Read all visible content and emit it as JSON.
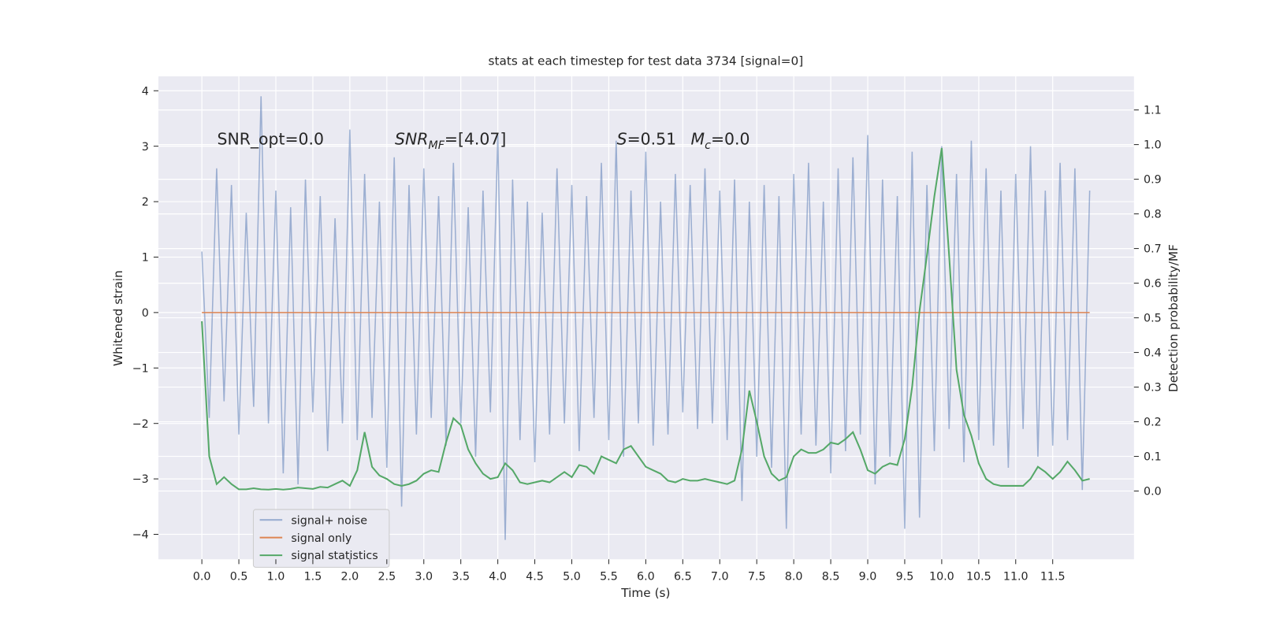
{
  "chart_data": {
    "type": "line",
    "title": "stats at each timestep for test data 3734 [signal=0]",
    "x_label": "Time (s)",
    "y_label": "Whitened strain",
    "y2_label": "Detection probability/MF",
    "annotations": [
      [
        "SNR_opt=0.0"
      ],
      [
        "SNR",
        "MF",
        "=[4.07]"
      ],
      [
        "S",
        "=0.51",
        "M",
        "c",
        "=0.0"
      ]
    ],
    "grid": true,
    "legend": "lower left",
    "xlim": [
      -0.587,
      12.598
    ],
    "ylim": [
      -4.45,
      4.26
    ],
    "y2lim": [
      -0.197,
      1.197
    ],
    "xticks": [
      {
        "value": 0,
        "label": "0.0"
      },
      {
        "value": 0.5,
        "label": "0.5"
      },
      {
        "value": 1,
        "label": "1.0"
      },
      {
        "value": 1.5,
        "label": "1.5"
      },
      {
        "value": 2,
        "label": "2.0"
      },
      {
        "value": 2.5,
        "label": "2.5"
      },
      {
        "value": 3,
        "label": "3.0"
      },
      {
        "value": 3.5,
        "label": "3.5"
      },
      {
        "value": 4,
        "label": "4.0"
      },
      {
        "value": 4.5,
        "label": "4.5"
      },
      {
        "value": 5,
        "label": "5.0"
      },
      {
        "value": 5.5,
        "label": "5.5"
      },
      {
        "value": 6,
        "label": "6.0"
      },
      {
        "value": 6.5,
        "label": "6.5"
      },
      {
        "value": 7,
        "label": "7.0"
      },
      {
        "value": 7.5,
        "label": "7.5"
      },
      {
        "value": 8,
        "label": "8.0"
      },
      {
        "value": 8.5,
        "label": "8.5"
      },
      {
        "value": 9,
        "label": "9.0"
      },
      {
        "value": 9.5,
        "label": "9.5"
      },
      {
        "value": 10,
        "label": "10.0"
      },
      {
        "value": 10.5,
        "label": "10.5"
      },
      {
        "value": 11,
        "label": "11.0"
      },
      {
        "value": 11.5,
        "label": "11.5"
      }
    ],
    "yticks": [
      {
        "value": -4,
        "label": "−4"
      },
      {
        "value": -3,
        "label": "−3"
      },
      {
        "value": -2,
        "label": "−2"
      },
      {
        "value": -1,
        "label": "−1"
      },
      0,
      1,
      2,
      3,
      4
    ],
    "y2ticks": [
      {
        "value": 0,
        "label": "0.0"
      },
      {
        "value": 0.1,
        "label": "0.1"
      },
      {
        "value": 0.2,
        "label": "0.2"
      },
      {
        "value": 0.3,
        "label": "0.3"
      },
      {
        "value": 0.4,
        "label": "0.4"
      },
      {
        "value": 0.5,
        "label": "0.5"
      },
      {
        "value": 0.6,
        "label": "0.6"
      },
      {
        "value": 0.7,
        "label": "0.7"
      },
      {
        "value": 0.8,
        "label": "0.8"
      },
      {
        "value": 0.9,
        "label": "0.9"
      },
      {
        "value": 1,
        "label": "1.0"
      },
      {
        "value": 1.1,
        "label": "1.1"
      }
    ],
    "x": [
      0,
      0.1,
      0.2,
      0.3,
      0.4,
      0.5,
      0.6,
      0.7,
      0.8,
      0.9,
      1,
      1.1,
      1.2,
      1.3,
      1.4,
      1.5,
      1.6,
      1.7,
      1.8,
      1.9,
      2,
      2.1,
      2.2,
      2.3,
      2.4,
      2.5,
      2.6,
      2.7,
      2.8,
      2.9,
      3,
      3.1,
      3.2,
      3.3,
      3.4,
      3.5,
      3.6,
      3.7,
      3.8,
      3.9,
      4,
      4.1,
      4.2,
      4.3,
      4.4,
      4.5,
      4.6,
      4.7,
      4.8,
      4.9,
      5,
      5.1,
      5.2,
      5.3,
      5.4,
      5.5,
      5.6,
      5.7,
      5.8,
      5.9,
      6,
      6.1,
      6.2,
      6.3,
      6.4,
      6.5,
      6.6,
      6.7,
      6.8,
      6.9,
      7,
      7.1,
      7.2,
      7.3,
      7.4,
      7.5,
      7.6,
      7.7,
      7.8,
      7.9,
      8,
      8.1,
      8.2,
      8.3,
      8.4,
      8.5,
      8.6,
      8.7,
      8.8,
      8.9,
      9,
      9.1,
      9.2,
      9.3,
      9.4,
      9.5,
      9.6,
      9.7,
      9.8,
      9.9,
      10,
      10.1,
      10.2,
      10.3,
      10.4,
      10.5,
      10.6,
      10.7,
      10.8,
      10.9,
      11,
      11.1,
      11.2,
      11.3,
      11.4,
      11.5,
      11.6,
      11.7,
      11.8,
      11.9,
      12
    ],
    "series": [
      {
        "name": "signal+ noise",
        "color": "#4c72b0",
        "opacity": 0.5,
        "values": [
          1.1,
          -1.9,
          2.6,
          -1.6,
          2.3,
          -2.2,
          1.8,
          -1.7,
          3.9,
          -2.0,
          2.2,
          -2.9,
          1.9,
          -3.1,
          2.4,
          -1.8,
          2.1,
          -2.5,
          1.7,
          -2.0,
          3.3,
          -2.3,
          2.5,
          -1.9,
          2.0,
          -2.8,
          2.8,
          -3.5,
          2.3,
          -2.2,
          2.6,
          -1.9,
          2.1,
          -2.4,
          2.7,
          -2.0,
          1.9,
          -2.6,
          2.2,
          -1.8,
          3.2,
          -4.1,
          2.4,
          -2.3,
          2.0,
          -2.7,
          1.8,
          -2.2,
          2.6,
          -2.0,
          2.3,
          -2.5,
          2.1,
          -1.9,
          2.7,
          -2.3,
          3.1,
          -2.6,
          2.2,
          -2.0,
          2.9,
          -2.4,
          2.0,
          -2.2,
          2.5,
          -1.8,
          2.3,
          -2.1,
          2.6,
          -2.0,
          2.2,
          -2.3,
          2.4,
          -3.4,
          2.0,
          -2.6,
          2.3,
          -2.8,
          2.1,
          -3.9,
          2.5,
          -2.2,
          2.7,
          -2.4,
          2.0,
          -2.9,
          2.6,
          -2.5,
          2.8,
          -2.2,
          3.2,
          -3.1,
          2.4,
          -2.6,
          2.1,
          -3.9,
          2.9,
          -3.7,
          2.3,
          -2.5,
          3.0,
          -2.1,
          2.5,
          -2.7,
          3.1,
          -2.3,
          2.6,
          -2.4,
          2.2,
          -2.8,
          2.5,
          -2.1,
          3.0,
          -2.6,
          2.2,
          -2.4,
          2.7,
          -2.3,
          2.6,
          -3.2,
          2.2
        ]
      },
      {
        "name": "signal only",
        "color": "#dd8452",
        "opacity": 1,
        "values": [
          0,
          0,
          0,
          0,
          0,
          0,
          0,
          0,
          0,
          0,
          0,
          0,
          0,
          0,
          0,
          0,
          0,
          0,
          0,
          0,
          0,
          0,
          0,
          0,
          0,
          0,
          0,
          0,
          0,
          0,
          0,
          0,
          0,
          0,
          0,
          0,
          0,
          0,
          0,
          0,
          0,
          0,
          0,
          0,
          0,
          0,
          0,
          0,
          0,
          0,
          0,
          0,
          0,
          0,
          0,
          0,
          0,
          0,
          0,
          0,
          0,
          0,
          0,
          0,
          0,
          0,
          0,
          0,
          0,
          0,
          0,
          0,
          0,
          0,
          0,
          0,
          0,
          0,
          0,
          0,
          0,
          0,
          0,
          0,
          0,
          0,
          0,
          0,
          0,
          0,
          0,
          0,
          0,
          0,
          0,
          0,
          0,
          0,
          0,
          0,
          0,
          0,
          0,
          0,
          0,
          0,
          0,
          0,
          0,
          0,
          0,
          0,
          0,
          0,
          0,
          0,
          0,
          0,
          0,
          0,
          0
        ]
      },
      {
        "name": "signal statistics",
        "color": "#55a868",
        "opacity": 1,
        "axis": "y2",
        "values": [
          0.49,
          0.1,
          0.02,
          0.04,
          0.02,
          0.005,
          0.005,
          0.008,
          0.005,
          0.004,
          0.006,
          0.004,
          0.006,
          0.01,
          0.008,
          0.006,
          0.012,
          0.01,
          0.02,
          0.03,
          0.015,
          0.06,
          0.17,
          0.07,
          0.045,
          0.035,
          0.02,
          0.015,
          0.02,
          0.03,
          0.05,
          0.06,
          0.055,
          0.14,
          0.21,
          0.19,
          0.12,
          0.08,
          0.05,
          0.035,
          0.04,
          0.08,
          0.06,
          0.025,
          0.02,
          0.025,
          0.03,
          0.025,
          0.04,
          0.055,
          0.04,
          0.075,
          0.07,
          0.05,
          0.1,
          0.09,
          0.08,
          0.12,
          0.13,
          0.1,
          0.07,
          0.06,
          0.05,
          0.03,
          0.025,
          0.035,
          0.03,
          0.03,
          0.035,
          0.03,
          0.025,
          0.02,
          0.03,
          0.12,
          0.29,
          0.2,
          0.1,
          0.05,
          0.03,
          0.04,
          0.1,
          0.12,
          0.11,
          0.11,
          0.12,
          0.14,
          0.135,
          0.15,
          0.17,
          0.12,
          0.06,
          0.05,
          0.07,
          0.08,
          0.075,
          0.15,
          0.3,
          0.52,
          0.68,
          0.85,
          0.99,
          0.68,
          0.35,
          0.22,
          0.16,
          0.08,
          0.035,
          0.02,
          0.015,
          0.015,
          0.015,
          0.015,
          0.035,
          0.07,
          0.055,
          0.035,
          0.055,
          0.085,
          0.06,
          0.03,
          0.035
        ]
      }
    ]
  }
}
